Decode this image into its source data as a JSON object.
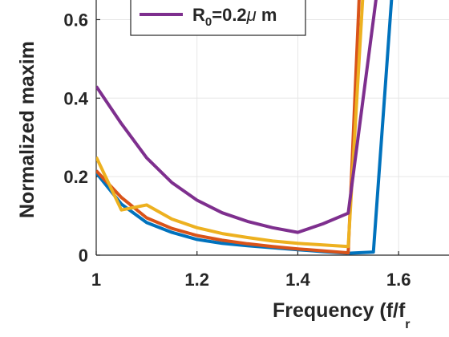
{
  "chart_data": {
    "type": "line",
    "xlabel": "Frequency (f/f",
    "xlabel_subscript": "r",
    "ylabel": "Normalized maxim",
    "xlim": [
      1.0,
      1.7
    ],
    "ylim": [
      0,
      0.65
    ],
    "xticks": [
      1,
      1.2,
      1.4,
      1.6
    ],
    "xtick_labels": [
      "1",
      "1.2",
      "1.4",
      "1.6"
    ],
    "yticks": [
      0,
      0.2,
      0.4,
      0.6
    ],
    "ytick_labels": [
      "0",
      "0.2",
      "0.4",
      "0.6"
    ],
    "grid": true,
    "legend": {
      "placement": "top-left",
      "entries": [
        {
          "prefix": "R",
          "sub": "0",
          "suffix": "=0.2",
          "greek": "μ",
          "unit": " m",
          "series_index": 3
        }
      ]
    },
    "series": [
      {
        "color": "#0072BD",
        "x": [
          1.0,
          1.05,
          1.1,
          1.15,
          1.2,
          1.25,
          1.3,
          1.35,
          1.4,
          1.45,
          1.5,
          1.55,
          1.6
        ],
        "y": [
          0.21,
          0.13,
          0.083,
          0.058,
          0.04,
          0.03,
          0.024,
          0.019,
          0.014,
          0.009,
          0.005,
          0.008,
          0.9
        ]
      },
      {
        "color": "#D95319",
        "x": [
          1.0,
          1.05,
          1.1,
          1.15,
          1.2,
          1.25,
          1.3,
          1.35,
          1.4,
          1.45,
          1.5,
          1.53
        ],
        "y": [
          0.215,
          0.147,
          0.095,
          0.068,
          0.05,
          0.038,
          0.029,
          0.022,
          0.016,
          0.011,
          0.006,
          0.9
        ]
      },
      {
        "color": "#EDB120",
        "x": [
          1.0,
          1.05,
          1.1,
          1.15,
          1.2,
          1.25,
          1.3,
          1.35,
          1.4,
          1.45,
          1.5,
          1.54
        ],
        "y": [
          0.25,
          0.115,
          0.128,
          0.092,
          0.07,
          0.055,
          0.045,
          0.036,
          0.03,
          0.026,
          0.022,
          0.9
        ]
      },
      {
        "color": "#7E2F8E",
        "x": [
          1.0,
          1.05,
          1.1,
          1.15,
          1.2,
          1.25,
          1.3,
          1.35,
          1.4,
          1.45,
          1.5,
          1.55,
          1.58
        ],
        "y": [
          0.43,
          0.335,
          0.248,
          0.185,
          0.14,
          0.108,
          0.086,
          0.07,
          0.058,
          0.08,
          0.107,
          0.6,
          0.9
        ]
      }
    ]
  }
}
